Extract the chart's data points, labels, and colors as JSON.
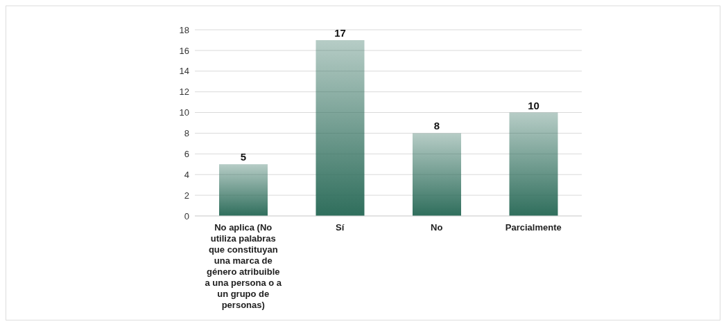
{
  "chart_data": {
    "type": "bar",
    "categories": [
      "No aplica (No utiliza palabras que constituyan una marca de género atribuible a una persona o a un grupo de personas)",
      "Sí",
      "No",
      "Parcialmente"
    ],
    "values": [
      5,
      17,
      8,
      10
    ],
    "color": "#2f6e5c",
    "ylim": [
      0,
      18
    ],
    "yticks": [
      0,
      2,
      4,
      6,
      8,
      10,
      12,
      14,
      16,
      18
    ],
    "grid": "y",
    "data_labels": true,
    "legend": false
  }
}
